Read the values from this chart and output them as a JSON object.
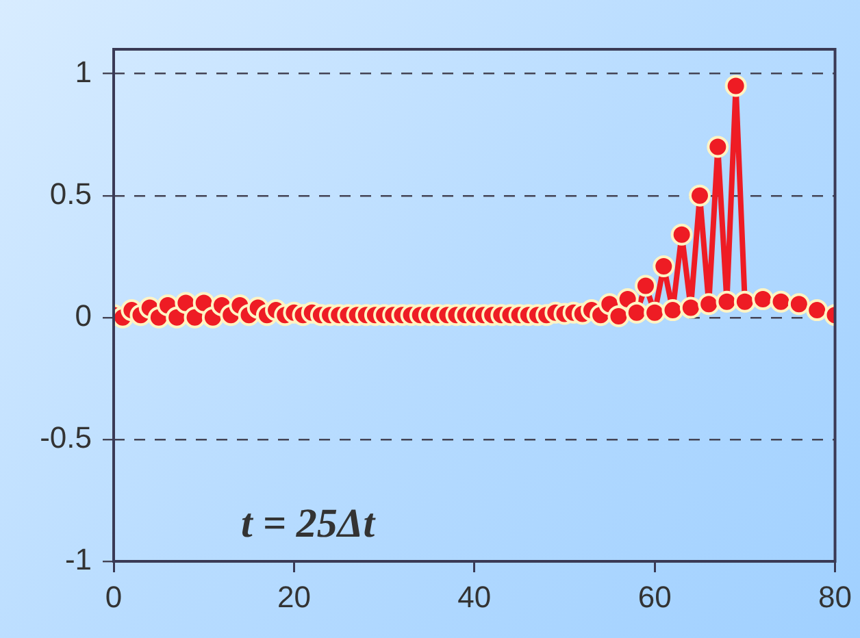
{
  "chart_data": {
    "type": "line",
    "x": [
      0,
      1,
      2,
      3,
      4,
      5,
      6,
      7,
      8,
      9,
      10,
      11,
      12,
      13,
      14,
      15,
      16,
      17,
      18,
      19,
      20,
      21,
      22,
      23,
      24,
      25,
      26,
      27,
      28,
      29,
      30,
      31,
      32,
      33,
      34,
      35,
      36,
      37,
      38,
      39,
      40,
      41,
      42,
      43,
      44,
      45,
      46,
      47,
      48,
      49,
      50,
      51,
      52,
      53,
      54,
      55,
      56,
      57,
      58,
      59,
      60,
      61,
      62,
      63,
      64,
      65,
      66,
      67,
      68,
      69,
      70,
      71,
      72,
      73,
      74,
      75,
      76,
      77,
      78,
      79,
      80
    ],
    "series": [
      {
        "color": "#ee1c24",
        "values": [
          0.01,
          0.0,
          0.03,
          0.01,
          0.04,
          0.0,
          0.05,
          0.0,
          0.06,
          0.0,
          0.06,
          0.0,
          0.05,
          0.01,
          0.05,
          0.01,
          0.04,
          0.01,
          0.03,
          0.01,
          0.02,
          0.01,
          0.02,
          0.01,
          0.01,
          0.01,
          0.01,
          0.01,
          0.01,
          0.01,
          0.01,
          0.01,
          0.01,
          0.01,
          0.01,
          0.01,
          0.01,
          0.01,
          0.01,
          0.01,
          0.01,
          0.01,
          0.01,
          0.01,
          0.01,
          0.01,
          0.01,
          0.01,
          0.01,
          0.02,
          0.015,
          0.02,
          0.015,
          0.03,
          0.01,
          0.055,
          0.005,
          0.075,
          0.02,
          0.13,
          0.02,
          0.21,
          0.03,
          0.34,
          0.04,
          0.5,
          0.055,
          0.7,
          0.065,
          0.95,
          0.065,
          null,
          0.075,
          null,
          0.065,
          null,
          0.055,
          null,
          0.03,
          null,
          0.01
        ]
      }
    ],
    "xlim": [
      0,
      80
    ],
    "xticks": [
      0,
      20,
      40,
      60,
      80
    ],
    "ylim": [
      -1,
      1.1
    ],
    "yticks": [
      -1,
      -0.5,
      0,
      0.5,
      1
    ],
    "grid": "y",
    "legend": false,
    "marker": "circle",
    "line_style": "solid",
    "annotations": [
      "t = 25Δt"
    ]
  }
}
